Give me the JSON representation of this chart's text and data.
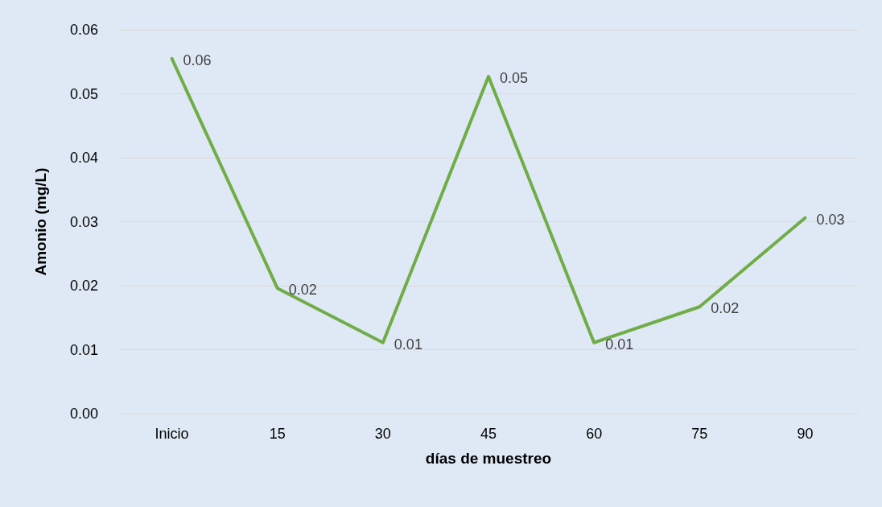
{
  "chart_data": {
    "type": "line",
    "xlabel": "días de muestreo",
    "ylabel": "Amonio (mg/L)",
    "categories": [
      "Inicio",
      "15",
      "30",
      "45",
      "60",
      "75",
      "90"
    ],
    "series": [
      {
        "color": "#70ad47",
        "values": [
          0.0555,
          0.0196,
          0.0111,
          0.0527,
          0.0111,
          0.0167,
          0.0306
        ],
        "value_labels": [
          "0.06",
          "0.02",
          "0.01",
          "0.05",
          "0.01",
          "0.02",
          "0.03"
        ]
      }
    ],
    "ylim": [
      0,
      0.06
    ],
    "yticks": [
      {
        "value": 0,
        "label": "0.00"
      },
      {
        "value": 0.01,
        "label": "0.01"
      },
      {
        "value": 0.02,
        "label": "0.02"
      },
      {
        "value": 0.03,
        "label": "0.03"
      },
      {
        "value": 0.04,
        "label": "0.04"
      },
      {
        "value": 0.05,
        "label": "0.05"
      },
      {
        "value": 0.06,
        "label": "0.06"
      }
    ],
    "grid": "y",
    "marker": "none",
    "line_style": "solid"
  }
}
